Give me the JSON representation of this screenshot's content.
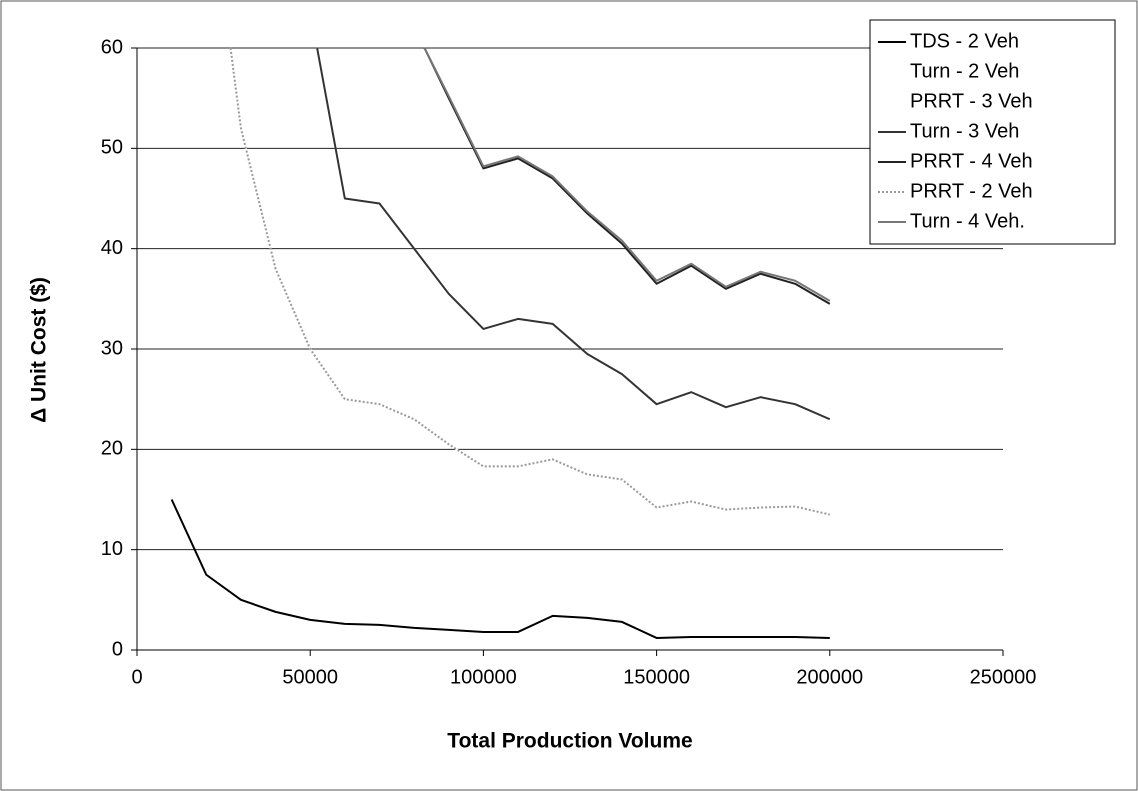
{
  "chart_data": {
    "type": "line",
    "xlabel": "Total Production Volume",
    "ylabel": "Δ Unit Cost ($)",
    "xlim": [
      0,
      250000
    ],
    "xticks": [
      0,
      50000,
      100000,
      150000,
      200000,
      250000
    ],
    "ylim": [
      0,
      60
    ],
    "yticks": [
      0,
      10,
      20,
      30,
      40,
      50,
      60
    ],
    "grid": true,
    "legend": "upper right",
    "series": [
      {
        "name": "TDS - 2 Veh",
        "color": "#000000",
        "style": "solid",
        "x": [
          10000,
          20000,
          30000,
          40000,
          50000,
          60000,
          70000,
          80000,
          90000,
          100000,
          110000,
          120000,
          130000,
          140000,
          150000,
          160000,
          170000,
          180000,
          190000,
          200000
        ],
        "values": [
          15,
          7.5,
          5,
          3.8,
          3,
          2.6,
          2.5,
          2.2,
          2,
          1.8,
          1.8,
          3.4,
          3.2,
          2.8,
          1.2,
          1.3,
          1.3,
          1.3,
          1.3,
          1.2
        ]
      },
      {
        "name": "Turn - 2 Veh",
        "color": "#ffffff",
        "style": "solid",
        "x": [
          27000,
          30000,
          40000,
          50000,
          60000,
          70000,
          80000,
          90000,
          100000,
          110000,
          120000,
          130000,
          140000,
          150000,
          160000,
          170000,
          180000,
          190000,
          200000
        ],
        "values": [
          60,
          52,
          38,
          30,
          25,
          24.5,
          23,
          20.5,
          18.3,
          18.3,
          19,
          17.5,
          17,
          14.2,
          14.8,
          14,
          14.2,
          14.3,
          13.5
        ]
      },
      {
        "name": "PRRT - 3 Veh",
        "color": "#ffffff",
        "style": "solid",
        "x": [
          52000,
          60000,
          70000,
          80000,
          90000,
          100000,
          110000,
          120000,
          130000,
          140000,
          150000,
          160000,
          170000,
          180000,
          190000,
          200000
        ],
        "values": [
          60,
          45,
          44.5,
          40,
          35.5,
          32,
          33,
          32.5,
          29.5,
          27.5,
          24.5,
          25.7,
          24.2,
          25.2,
          24.5,
          23
        ]
      },
      {
        "name": "Turn - 3 Veh",
        "color": "#333333",
        "style": "solid",
        "x": [
          52000,
          60000,
          70000,
          80000,
          90000,
          100000,
          110000,
          120000,
          130000,
          140000,
          150000,
          160000,
          170000,
          180000,
          190000,
          200000
        ],
        "values": [
          60,
          45,
          44.5,
          40,
          35.5,
          32,
          33,
          32.5,
          29.5,
          27.5,
          24.5,
          25.7,
          24.2,
          25.2,
          24.5,
          23
        ]
      },
      {
        "name": "PRRT - 4 Veh",
        "color": "#222222",
        "style": "solid",
        "x": [
          83000,
          90000,
          100000,
          110000,
          120000,
          130000,
          140000,
          150000,
          160000,
          170000,
          180000,
          190000,
          200000
        ],
        "values": [
          60,
          55,
          48,
          49,
          47,
          43.5,
          40.5,
          36.5,
          38.3,
          36,
          37.5,
          36.5,
          34.5
        ]
      },
      {
        "name": "PRRT - 2 Veh",
        "color": "#999999",
        "style": "dotted",
        "x": [
          27000,
          30000,
          40000,
          50000,
          60000,
          70000,
          80000,
          90000,
          100000,
          110000,
          120000,
          130000,
          140000,
          150000,
          160000,
          170000,
          180000,
          190000,
          200000
        ],
        "values": [
          60,
          52,
          38,
          30,
          25,
          24.5,
          23,
          20.5,
          18.3,
          18.3,
          19,
          17.5,
          17,
          14.2,
          14.8,
          14,
          14.2,
          14.3,
          13.5
        ]
      },
      {
        "name": "Turn - 4 Veh.",
        "color": "#777777",
        "style": "solid",
        "x": [
          83000,
          90000,
          100000,
          110000,
          120000,
          130000,
          140000,
          150000,
          160000,
          170000,
          180000,
          190000,
          200000
        ],
        "values": [
          60,
          55.2,
          48.2,
          49.2,
          47.2,
          43.7,
          40.8,
          36.8,
          38.5,
          36.2,
          37.7,
          36.8,
          34.8
        ]
      }
    ]
  }
}
